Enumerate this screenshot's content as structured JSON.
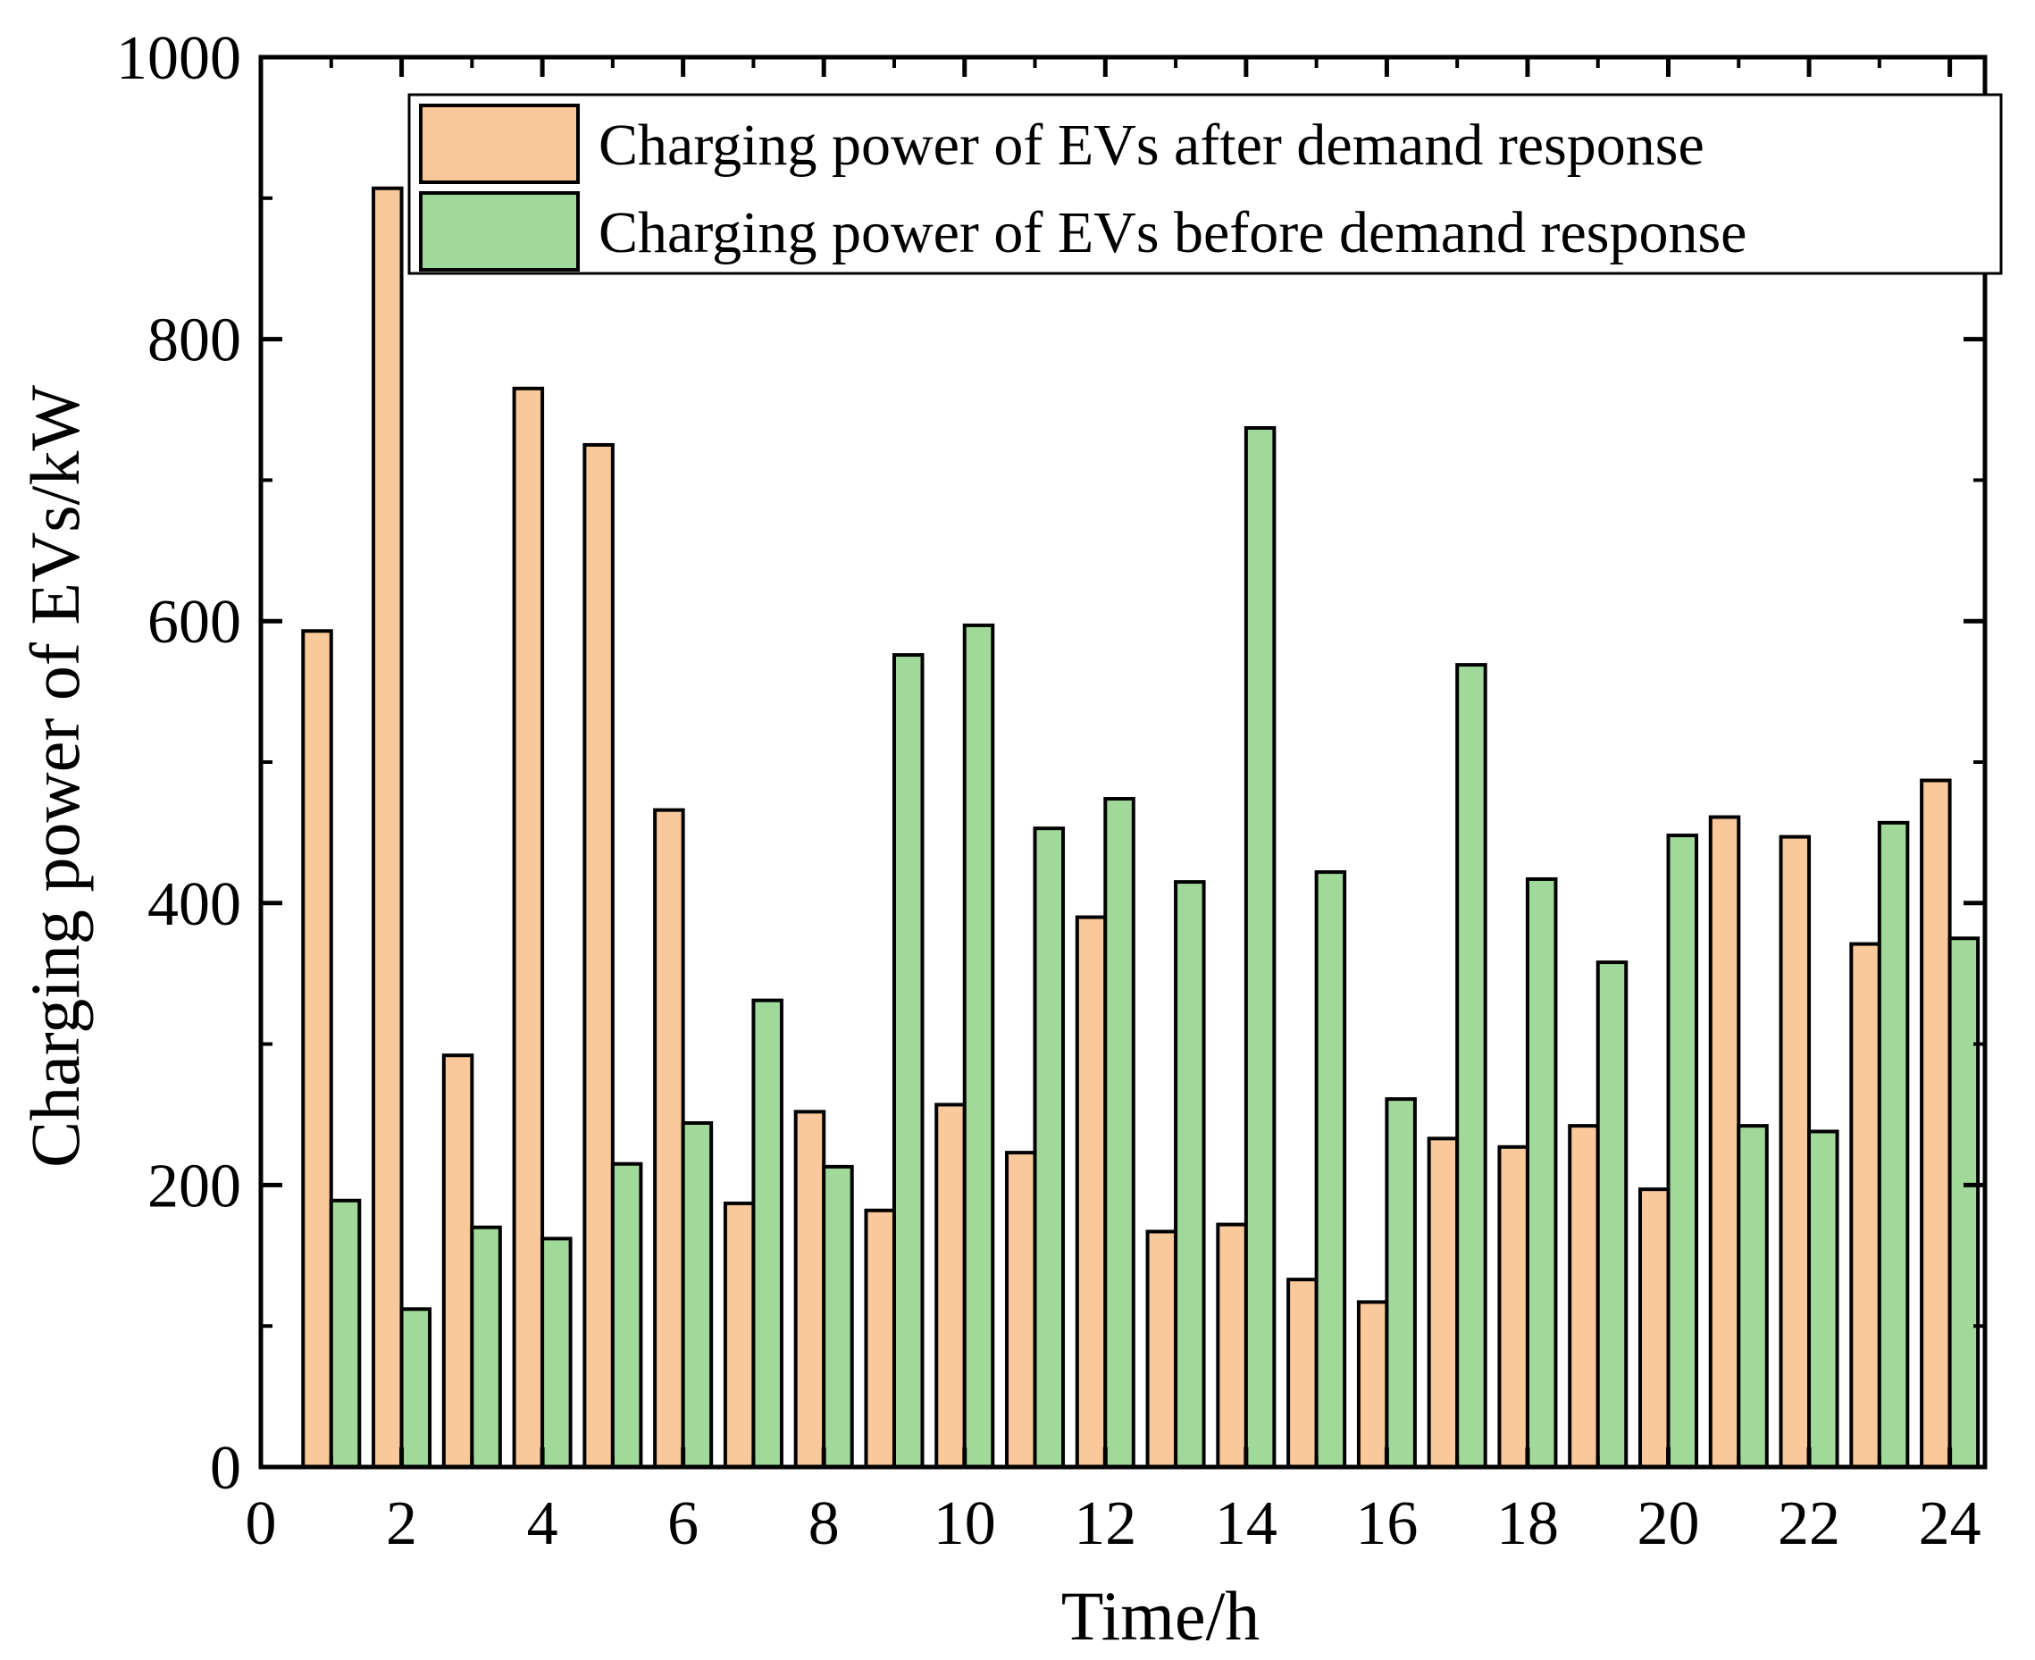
{
  "chart_data": {
    "type": "bar",
    "title": "",
    "xlabel": "Time/h",
    "ylabel": "Charging power of EVs/kW",
    "xlim": [
      0,
      24.5
    ],
    "ylim": [
      0,
      1000
    ],
    "x_ticks": [
      "0",
      "2",
      "4",
      "6",
      "8",
      "10",
      "12",
      "14",
      "16",
      "18",
      "20",
      "22",
      "24"
    ],
    "y_ticks": [
      "0",
      "200",
      "400",
      "600",
      "800",
      "1000"
    ],
    "categories": [
      1,
      2,
      3,
      4,
      5,
      6,
      7,
      8,
      9,
      10,
      11,
      12,
      13,
      14,
      15,
      16,
      17,
      18,
      19,
      20,
      21,
      22,
      23,
      24
    ],
    "legend_position": "top-right",
    "series": [
      {
        "name": "Charging power of EVs after demand response",
        "color": "#F9C89B",
        "values": [
          593,
          907,
          292,
          765,
          725,
          466,
          187,
          252,
          182,
          257,
          223,
          390,
          167,
          172,
          133,
          117,
          233,
          227,
          242,
          197,
          461,
          447,
          371,
          487
        ]
      },
      {
        "name": "Charging power of EVs before demand response",
        "color": "#A1D99B",
        "values": [
          189,
          112,
          170,
          162,
          215,
          244,
          331,
          213,
          576,
          597,
          453,
          474,
          415,
          737,
          422,
          261,
          569,
          417,
          358,
          448,
          242,
          238,
          457,
          375
        ]
      }
    ]
  }
}
